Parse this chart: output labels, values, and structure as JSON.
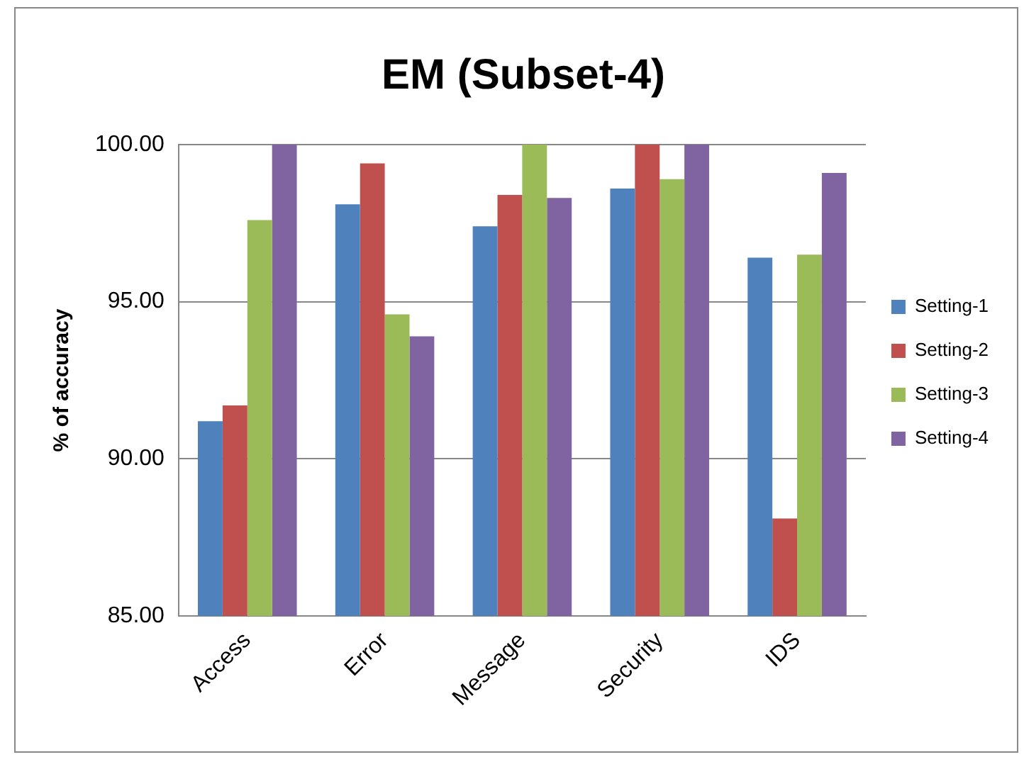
{
  "chart_data": {
    "type": "bar",
    "title": "EM (Subset-4)",
    "ylabel": "% of accuracy",
    "categories": [
      "Access",
      "Error",
      "Message",
      "Security",
      "IDS"
    ],
    "series": [
      {
        "name": "Setting-1",
        "color": "#4f81bd",
        "values": [
          91.2,
          98.1,
          97.4,
          98.6,
          96.4
        ]
      },
      {
        "name": "Setting-2",
        "color": "#c0504d",
        "values": [
          91.7,
          99.4,
          98.4,
          100,
          88.1
        ]
      },
      {
        "name": "Setting-3",
        "color": "#9bbb59",
        "values": [
          97.6,
          94.6,
          100,
          98.9,
          96.5
        ]
      },
      {
        "name": "Setting-4",
        "color": "#8064a2",
        "values": [
          100,
          93.9,
          98.3,
          100,
          99.1
        ]
      }
    ],
    "ylim": [
      85,
      100
    ],
    "yticks": [
      {
        "value": 85,
        "label": "85.00"
      },
      {
        "value": 90,
        "label": "90.00"
      },
      {
        "value": 95,
        "label": "95.00"
      },
      {
        "value": 100,
        "label": "100.00"
      }
    ],
    "grid": "y",
    "legend": "right"
  }
}
